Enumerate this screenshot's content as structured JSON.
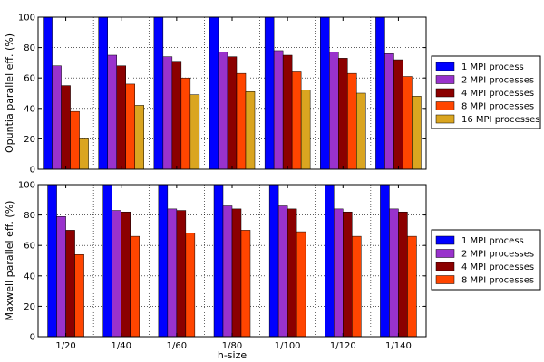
{
  "chart_data": [
    {
      "type": "bar",
      "xlabel": "",
      "ylabel": "Opuntia parallel eff. (%)",
      "ylim": [
        0,
        100
      ],
      "yticks": [
        0,
        20,
        40,
        60,
        80,
        100
      ],
      "grid": true,
      "legend_position": "right",
      "categories": [
        "1/20",
        "1/40",
        "1/60",
        "1/80",
        "1/100",
        "1/120",
        "1/140"
      ],
      "series": [
        {
          "name": "1 MPI process",
          "color": "#0000ff",
          "values": [
            100,
            100,
            100,
            100,
            100,
            100,
            100
          ]
        },
        {
          "name": "2 MPI processes",
          "color": "#9932cc",
          "values": [
            68,
            75,
            74,
            77,
            78,
            77,
            76
          ]
        },
        {
          "name": "4 MPI processes",
          "color": "#8b0000",
          "values": [
            55,
            68,
            71,
            74,
            75,
            73,
            72
          ]
        },
        {
          "name": "8 MPI processes",
          "color": "#ff4500",
          "values": [
            38,
            56,
            60,
            63,
            64,
            63,
            61
          ]
        },
        {
          "name": "16 MPI processes",
          "color": "#daa520",
          "values": [
            20,
            42,
            49,
            51,
            52,
            50,
            48
          ]
        }
      ]
    },
    {
      "type": "bar",
      "xlabel": "h-size",
      "ylabel": "Maxwell parallel eff. (%)",
      "ylim": [
        0,
        100
      ],
      "yticks": [
        0,
        20,
        40,
        60,
        80,
        100
      ],
      "grid": true,
      "legend_position": "right",
      "categories": [
        "1/20",
        "1/40",
        "1/60",
        "1/80",
        "1/100",
        "1/120",
        "1/140"
      ],
      "series": [
        {
          "name": "1 MPI process",
          "color": "#0000ff",
          "values": [
            100,
            100,
            100,
            100,
            100,
            100,
            100
          ]
        },
        {
          "name": "2 MPI processes",
          "color": "#9932cc",
          "values": [
            79,
            83,
            84,
            86,
            86,
            84,
            84
          ]
        },
        {
          "name": "4 MPI processes",
          "color": "#8b0000",
          "values": [
            70,
            82,
            83,
            84,
            84,
            82,
            82
          ]
        },
        {
          "name": "8 MPI processes",
          "color": "#ff4500",
          "values": [
            54,
            66,
            68,
            70,
            69,
            66,
            66
          ]
        }
      ]
    }
  ]
}
